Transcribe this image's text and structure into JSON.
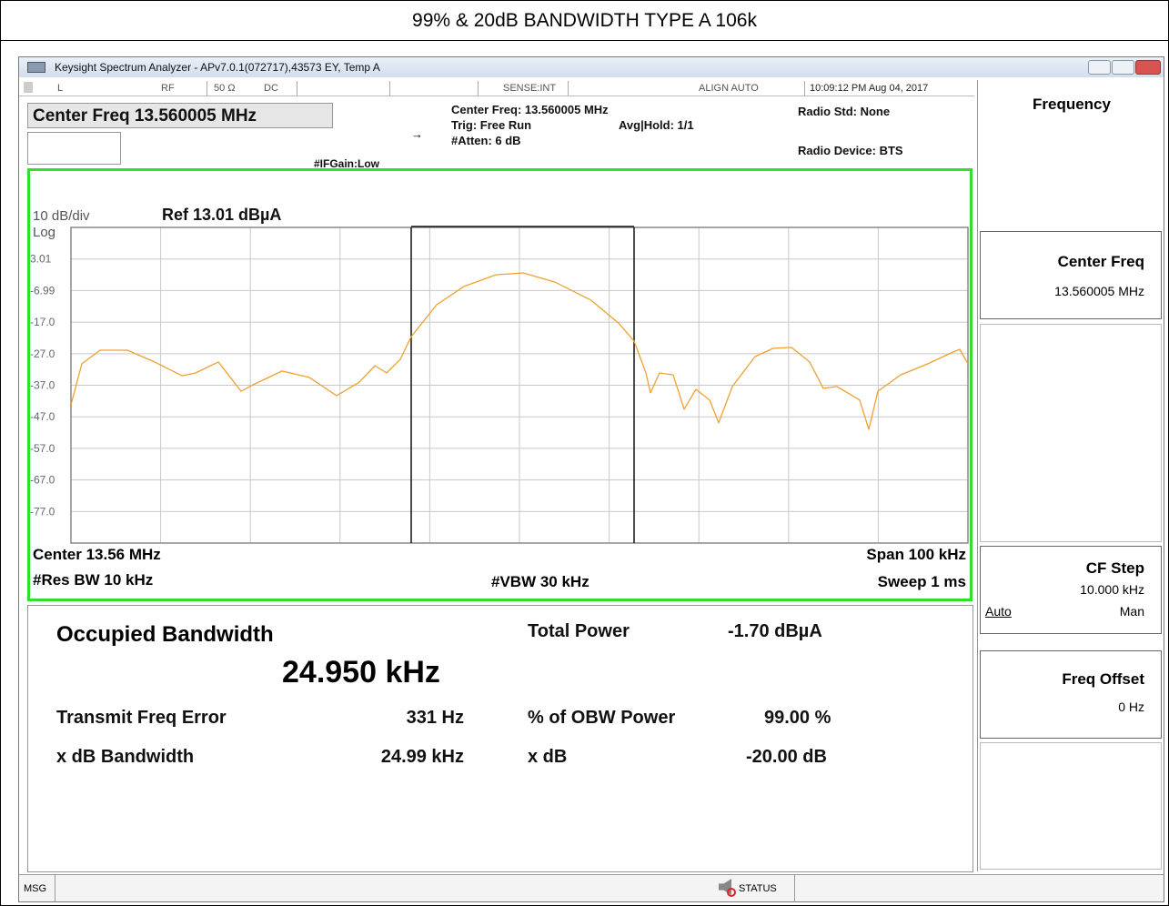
{
  "title": "99% & 20dB BANDWIDTH TYPE A 106k",
  "window": {
    "title": "Keysight Spectrum Analyzer - APv7.0.1(072717),43573 EY, Temp A"
  },
  "status_row": {
    "input_mode": "L",
    "input": "RF",
    "impedance": "50 Ω",
    "coupling": "DC",
    "sense": "SENSE:INT",
    "align": "ALIGN AUTO",
    "timestamp": "10:09:12 PM Aug 04, 2017"
  },
  "header": {
    "center_freq_box": "Center Freq 13.560005 MHz",
    "if_gain": "#IFGain:Low",
    "center_freq": "Center Freq: 13.560005 MHz",
    "trigger": "Trig: Free Run",
    "avg_hold": "Avg|Hold: 1/1",
    "atten": "#Atten: 6 dB",
    "radio_std": "Radio Std: None",
    "radio_device": "Radio Device: BTS"
  },
  "chart_data": {
    "type": "line",
    "scale": "10 dB/div",
    "ref_level": "Ref 13.01 dBµA",
    "scale_type": "Log",
    "x": [
      13.51,
      13.51122,
      13.51325,
      13.51629,
      13.51933,
      13.52237,
      13.52389,
      13.52643,
      13.52897,
      13.53049,
      13.53353,
      13.53657,
      13.53961,
      13.54215,
      13.54387,
      13.54519,
      13.54671,
      13.54793,
      13.55077,
      13.55381,
      13.55736,
      13.56041,
      13.56396,
      13.56801,
      13.57105,
      13.57278,
      13.5741,
      13.5746,
      13.57562,
      13.57714,
      13.57836,
      13.57968,
      13.5812,
      13.58221,
      13.58373,
      13.58627,
      13.5883,
      13.59032,
      13.59235,
      13.59387,
      13.5954,
      13.59793,
      13.59895,
      13.59996,
      13.6025,
      13.60554,
      13.60808,
      13.60909,
      13.61
    ],
    "values": [
      -43.2,
      -30.2,
      -25.9,
      -25.9,
      -29.6,
      -34.0,
      -33.1,
      -29.6,
      -38.9,
      -36.6,
      -32.5,
      -34.5,
      -40.3,
      -36.0,
      -30.8,
      -33.1,
      -28.8,
      -21.6,
      -11.5,
      -5.7,
      -2.0,
      -1.4,
      -4.3,
      -10.1,
      -17.3,
      -23.0,
      -33.1,
      -39.4,
      -33.1,
      -33.7,
      -44.6,
      -38.3,
      -41.7,
      -48.9,
      -37.4,
      -27.9,
      -25.3,
      -25.0,
      -29.6,
      -38.0,
      -37.4,
      -41.7,
      -51.0,
      -38.9,
      -33.7,
      -30.2,
      -26.8,
      -25.6,
      -30.2
    ],
    "color": "#f0a030",
    "xlim": [
      13.51,
      13.61
    ],
    "ylim": [
      -86.99,
      13.01
    ],
    "yticks": [
      3.01,
      -6.99,
      {
        "value": -17,
        "label": "-17.0"
      },
      {
        "value": -27,
        "label": "-27.0"
      },
      {
        "value": -37,
        "label": "-37.0"
      },
      {
        "value": -47,
        "label": "-47.0"
      },
      {
        "value": -57,
        "label": "-57.0"
      },
      {
        "value": -67,
        "label": "-67.0"
      },
      {
        "value": -77,
        "label": "-77.0"
      }
    ],
    "grid": true,
    "center_label": "Center 13.56 MHz",
    "span_label": "Span 100 kHz",
    "rbw_label": "#Res BW 10 kHz",
    "vbw_label": "#VBW 30 kHz",
    "sweep_label": "Sweep 1 ms"
  },
  "measurement": {
    "title": "Occupied Bandwidth",
    "value": "24.950 kHz",
    "total_power_label": "Total Power",
    "total_power": "-1.70 dBµA",
    "rows": [
      [
        "Transmit Freq Error",
        "331 Hz",
        "% of OBW Power",
        "99.00 %"
      ],
      [
        "x dB Bandwidth",
        "24.99 kHz",
        "x dB",
        "-20.00 dB"
      ]
    ]
  },
  "softkeys": {
    "menu": "Frequency",
    "items": [
      {
        "label": "Center Freq",
        "value": "13.560005 MHz"
      },
      {
        "label": "CF Step",
        "value": "10.000 kHz",
        "options": [
          "Auto",
          "Man"
        ]
      },
      {
        "label": "Freq Offset",
        "value": "0 Hz"
      }
    ]
  },
  "status_bar": {
    "msg": "MSG",
    "status": "STATUS"
  }
}
